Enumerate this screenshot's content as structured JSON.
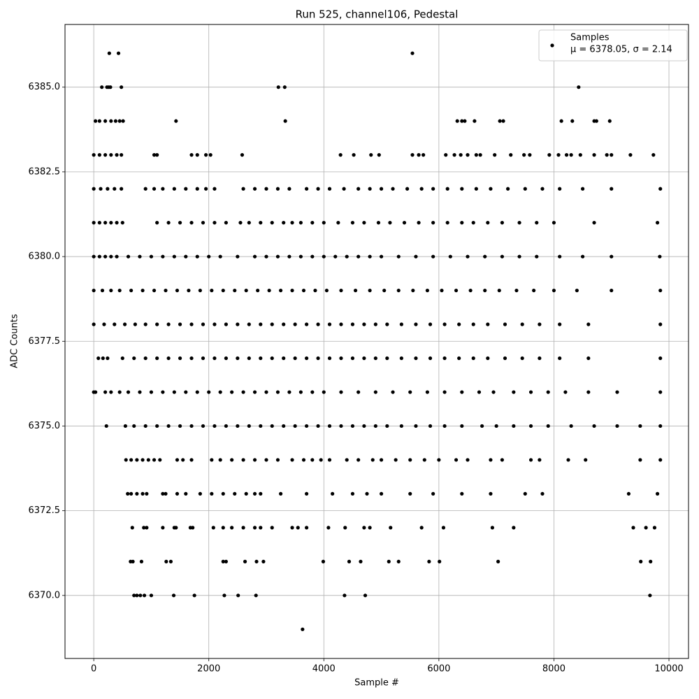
{
  "chart_data": {
    "type": "scatter",
    "title": "Run 525, channel106, Pedestal",
    "x_label": "Sample #",
    "y_label": "ADC Counts",
    "annotation": "μ = 6378.05, σ = 2.14",
    "xlim": [
      -500,
      10340
    ],
    "ylim": [
      6368.14,
      6386.85
    ],
    "xticks": [
      0,
      2000,
      4000,
      6000,
      8000,
      10000
    ],
    "yticks": [
      {
        "value": 6370,
        "label": "6370.0"
      },
      {
        "value": 6372.5,
        "label": "6372.5"
      },
      {
        "value": 6375,
        "label": "6375.0"
      },
      {
        "value": 6377.5,
        "label": "6377.5"
      },
      {
        "value": 6380,
        "label": "6380.0"
      },
      {
        "value": 6382.5,
        "label": "6382.5"
      },
      {
        "value": 6385,
        "label": "6385.0"
      }
    ],
    "grid": true,
    "legend_position": "upper right",
    "series": [
      {
        "name": "Samples",
        "color": "#000000",
        "x": [
          270,
          430,
          5540,
          140,
          230,
          260,
          290,
          480,
          3210,
          3320,
          8430,
          30,
          100,
          200,
          300,
          380,
          450,
          510,
          1430,
          3330,
          6320,
          6400,
          6450,
          6620,
          7060,
          7120,
          8130,
          8320,
          8700,
          8740,
          8970,
          0,
          100,
          200,
          300,
          400,
          480,
          1050,
          1100,
          1700,
          1800,
          1950,
          2030,
          2580,
          4290,
          4520,
          4820,
          4960,
          5540,
          5650,
          5730,
          6120,
          6270,
          6380,
          6500,
          6650,
          6720,
          6970,
          7250,
          7480,
          7580,
          7920,
          8080,
          8220,
          8300,
          8460,
          8700,
          8920,
          9000,
          9330,
          9730,
          0,
          120,
          240,
          360,
          480,
          900,
          1050,
          1200,
          1400,
          1600,
          1800,
          1950,
          2100,
          2600,
          2800,
          3000,
          3200,
          3400,
          3700,
          3900,
          4100,
          4350,
          4600,
          4800,
          5000,
          5200,
          5450,
          5700,
          5900,
          6150,
          6400,
          6650,
          6900,
          7200,
          7500,
          7800,
          8100,
          8500,
          9000,
          9850,
          0,
          100,
          200,
          300,
          400,
          500,
          1100,
          1300,
          1500,
          1700,
          1900,
          2100,
          2300,
          2550,
          2700,
          2900,
          3100,
          3300,
          3450,
          3600,
          3800,
          4000,
          4250,
          4500,
          4700,
          4950,
          5150,
          5400,
          5650,
          5900,
          6150,
          6400,
          6600,
          6850,
          7100,
          7400,
          7700,
          8000,
          8700,
          9800,
          0,
          100,
          200,
          300,
          400,
          600,
          800,
          1000,
          1200,
          1400,
          1600,
          1800,
          2000,
          2200,
          2500,
          2800,
          3000,
          3200,
          3400,
          3600,
          3800,
          4000,
          4200,
          4400,
          4600,
          4800,
          5000,
          5300,
          5600,
          5900,
          6200,
          6500,
          6800,
          7100,
          7400,
          7700,
          8100,
          8500,
          9000,
          9840,
          0,
          150,
          300,
          450,
          650,
          850,
          1050,
          1250,
          1450,
          1650,
          1850,
          2050,
          2250,
          2450,
          2650,
          2850,
          3050,
          3250,
          3450,
          3650,
          3850,
          4050,
          4300,
          4550,
          4800,
          5050,
          5300,
          5550,
          5800,
          6050,
          6300,
          6550,
          6800,
          7050,
          7350,
          7650,
          8000,
          8400,
          9000,
          9850,
          0,
          180,
          360,
          540,
          720,
          900,
          1100,
          1300,
          1500,
          1700,
          1900,
          2100,
          2300,
          2500,
          2700,
          2900,
          3100,
          3300,
          3500,
          3700,
          3900,
          4100,
          4300,
          4500,
          4700,
          4900,
          5100,
          5350,
          5600,
          5850,
          6100,
          6350,
          6600,
          6850,
          7150,
          7450,
          7750,
          8100,
          8600,
          9850,
          80,
          160,
          240,
          500,
          700,
          900,
          1100,
          1300,
          1500,
          1700,
          1900,
          2100,
          2300,
          2500,
          2700,
          2900,
          3100,
          3300,
          3500,
          3700,
          3900,
          4100,
          4300,
          4500,
          4700,
          4900,
          5100,
          5350,
          5600,
          5850,
          6100,
          6350,
          6600,
          6850,
          7150,
          7450,
          7750,
          8100,
          8600,
          9850,
          0,
          30,
          200,
          300,
          450,
          600,
          800,
          1000,
          1200,
          1400,
          1600,
          1800,
          2000,
          2200,
          2400,
          2600,
          2800,
          3000,
          3200,
          3400,
          3600,
          3800,
          4000,
          4300,
          4600,
          4900,
          5200,
          5500,
          5800,
          6100,
          6400,
          6700,
          6950,
          7300,
          7600,
          7900,
          8200,
          8600,
          9100,
          9850,
          220,
          550,
          700,
          900,
          1100,
          1300,
          1500,
          1700,
          1900,
          2100,
          2300,
          2500,
          2700,
          2900,
          3100,
          3300,
          3500,
          3700,
          3900,
          4100,
          4300,
          4500,
          4700,
          4900,
          5100,
          5350,
          5600,
          5850,
          6100,
          6400,
          6750,
          7000,
          7300,
          7600,
          7900,
          8300,
          8700,
          9100,
          9500,
          9850,
          560,
          650,
          750,
          850,
          950,
          1050,
          1150,
          1450,
          1550,
          1700,
          2050,
          2200,
          2400,
          2600,
          2800,
          3000,
          3200,
          3450,
          3650,
          3800,
          3950,
          4100,
          4400,
          4600,
          4850,
          5000,
          5250,
          5500,
          5750,
          6000,
          6300,
          6500,
          6900,
          7100,
          7600,
          7750,
          8250,
          8550,
          9500,
          9850,
          590,
          650,
          750,
          850,
          920,
          1200,
          1250,
          1450,
          1600,
          1850,
          2050,
          2250,
          2450,
          2650,
          2800,
          2900,
          3250,
          3700,
          4150,
          4500,
          4750,
          5000,
          5500,
          5900,
          6400,
          6900,
          7500,
          7800,
          9300,
          9800,
          670,
          870,
          920,
          1200,
          1400,
          1430,
          1680,
          1720,
          2080,
          2250,
          2400,
          2600,
          2800,
          2900,
          3100,
          3450,
          3550,
          3700,
          4080,
          4370,
          4700,
          4800,
          5160,
          5700,
          6080,
          6930,
          7300,
          9380,
          9600,
          9750,
          640,
          680,
          830,
          1260,
          1340,
          2250,
          2300,
          2630,
          2830,
          2950,
          3990,
          4440,
          4640,
          5130,
          5300,
          5830,
          6010,
          7030,
          9510,
          9680,
          700,
          750,
          810,
          880,
          1000,
          1390,
          1750,
          2270,
          2510,
          2820,
          4360,
          4720,
          9670,
          3630
        ],
        "values": [
          6386,
          6386,
          6386,
          6385,
          6385,
          6385,
          6385,
          6385,
          6385,
          6385,
          6385,
          6384,
          6384,
          6384,
          6384,
          6384,
          6384,
          6384,
          6384,
          6384,
          6384,
          6384,
          6384,
          6384,
          6384,
          6384,
          6384,
          6384,
          6384,
          6384,
          6384,
          6383,
          6383,
          6383,
          6383,
          6383,
          6383,
          6383,
          6383,
          6383,
          6383,
          6383,
          6383,
          6383,
          6383,
          6383,
          6383,
          6383,
          6383,
          6383,
          6383,
          6383,
          6383,
          6383,
          6383,
          6383,
          6383,
          6383,
          6383,
          6383,
          6383,
          6383,
          6383,
          6383,
          6383,
          6383,
          6383,
          6383,
          6383,
          6383,
          6383,
          6382,
          6382,
          6382,
          6382,
          6382,
          6382,
          6382,
          6382,
          6382,
          6382,
          6382,
          6382,
          6382,
          6382,
          6382,
          6382,
          6382,
          6382,
          6382,
          6382,
          6382,
          6382,
          6382,
          6382,
          6382,
          6382,
          6382,
          6382,
          6382,
          6382,
          6382,
          6382,
          6382,
          6382,
          6382,
          6382,
          6382,
          6382,
          6382,
          6382,
          6381,
          6381,
          6381,
          6381,
          6381,
          6381,
          6381,
          6381,
          6381,
          6381,
          6381,
          6381,
          6381,
          6381,
          6381,
          6381,
          6381,
          6381,
          6381,
          6381,
          6381,
          6381,
          6381,
          6381,
          6381,
          6381,
          6381,
          6381,
          6381,
          6381,
          6381,
          6381,
          6381,
          6381,
          6381,
          6381,
          6381,
          6381,
          6381,
          6381,
          6380,
          6380,
          6380,
          6380,
          6380,
          6380,
          6380,
          6380,
          6380,
          6380,
          6380,
          6380,
          6380,
          6380,
          6380,
          6380,
          6380,
          6380,
          6380,
          6380,
          6380,
          6380,
          6380,
          6380,
          6380,
          6380,
          6380,
          6380,
          6380,
          6380,
          6380,
          6380,
          6380,
          6380,
          6380,
          6380,
          6380,
          6380,
          6380,
          6380,
          6379,
          6379,
          6379,
          6379,
          6379,
          6379,
          6379,
          6379,
          6379,
          6379,
          6379,
          6379,
          6379,
          6379,
          6379,
          6379,
          6379,
          6379,
          6379,
          6379,
          6379,
          6379,
          6379,
          6379,
          6379,
          6379,
          6379,
          6379,
          6379,
          6379,
          6379,
          6379,
          6379,
          6379,
          6379,
          6379,
          6379,
          6379,
          6379,
          6379,
          6378,
          6378,
          6378,
          6378,
          6378,
          6378,
          6378,
          6378,
          6378,
          6378,
          6378,
          6378,
          6378,
          6378,
          6378,
          6378,
          6378,
          6378,
          6378,
          6378,
          6378,
          6378,
          6378,
          6378,
          6378,
          6378,
          6378,
          6378,
          6378,
          6378,
          6378,
          6378,
          6378,
          6378,
          6378,
          6378,
          6378,
          6378,
          6378,
          6378,
          6377,
          6377,
          6377,
          6377,
          6377,
          6377,
          6377,
          6377,
          6377,
          6377,
          6377,
          6377,
          6377,
          6377,
          6377,
          6377,
          6377,
          6377,
          6377,
          6377,
          6377,
          6377,
          6377,
          6377,
          6377,
          6377,
          6377,
          6377,
          6377,
          6377,
          6377,
          6377,
          6377,
          6377,
          6377,
          6377,
          6377,
          6377,
          6377,
          6377,
          6376,
          6376,
          6376,
          6376,
          6376,
          6376,
          6376,
          6376,
          6376,
          6376,
          6376,
          6376,
          6376,
          6376,
          6376,
          6376,
          6376,
          6376,
          6376,
          6376,
          6376,
          6376,
          6376,
          6376,
          6376,
          6376,
          6376,
          6376,
          6376,
          6376,
          6376,
          6376,
          6376,
          6376,
          6376,
          6376,
          6376,
          6376,
          6376,
          6376,
          6375,
          6375,
          6375,
          6375,
          6375,
          6375,
          6375,
          6375,
          6375,
          6375,
          6375,
          6375,
          6375,
          6375,
          6375,
          6375,
          6375,
          6375,
          6375,
          6375,
          6375,
          6375,
          6375,
          6375,
          6375,
          6375,
          6375,
          6375,
          6375,
          6375,
          6375,
          6375,
          6375,
          6375,
          6375,
          6375,
          6375,
          6375,
          6375,
          6375,
          6374,
          6374,
          6374,
          6374,
          6374,
          6374,
          6374,
          6374,
          6374,
          6374,
          6374,
          6374,
          6374,
          6374,
          6374,
          6374,
          6374,
          6374,
          6374,
          6374,
          6374,
          6374,
          6374,
          6374,
          6374,
          6374,
          6374,
          6374,
          6374,
          6374,
          6374,
          6374,
          6374,
          6374,
          6374,
          6374,
          6374,
          6374,
          6374,
          6374,
          6373,
          6373,
          6373,
          6373,
          6373,
          6373,
          6373,
          6373,
          6373,
          6373,
          6373,
          6373,
          6373,
          6373,
          6373,
          6373,
          6373,
          6373,
          6373,
          6373,
          6373,
          6373,
          6373,
          6373,
          6373,
          6373,
          6373,
          6373,
          6373,
          6373,
          6372,
          6372,
          6372,
          6372,
          6372,
          6372,
          6372,
          6372,
          6372,
          6372,
          6372,
          6372,
          6372,
          6372,
          6372,
          6372,
          6372,
          6372,
          6372,
          6372,
          6372,
          6372,
          6372,
          6372,
          6372,
          6372,
          6372,
          6372,
          6372,
          6372,
          6371,
          6371,
          6371,
          6371,
          6371,
          6371,
          6371,
          6371,
          6371,
          6371,
          6371,
          6371,
          6371,
          6371,
          6371,
          6371,
          6371,
          6371,
          6371,
          6371,
          6370,
          6370,
          6370,
          6370,
          6370,
          6370,
          6370,
          6370,
          6370,
          6370,
          6370,
          6370,
          6370,
          6369
        ]
      }
    ]
  }
}
